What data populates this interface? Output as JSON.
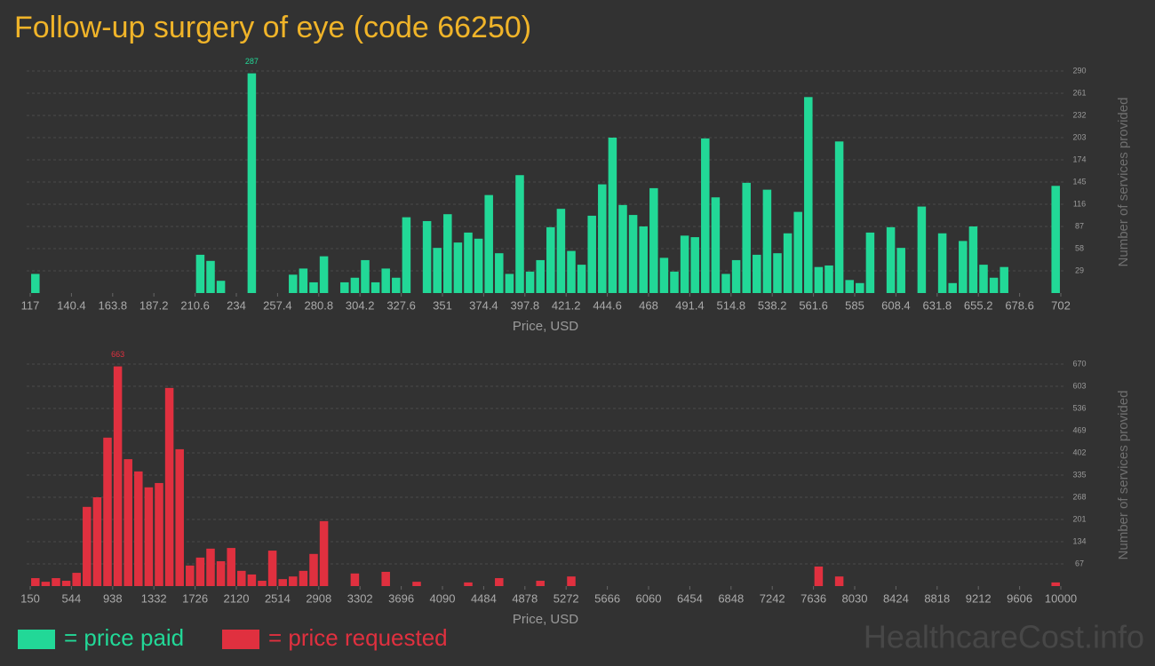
{
  "title": "Follow-up surgery of eye (code 66250)",
  "watermark": "HealthcareCost.info",
  "legend": "bottom-left",
  "chart_data": [
    {
      "type": "histogram",
      "name": "= price paid",
      "color": "#22d897",
      "xlabel": "Price, USD",
      "ylabel": "Number of services provided",
      "grid": true,
      "bins": [
        117,
        122.85,
        128.7,
        134.55,
        140.4,
        146.25,
        152.1,
        157.95,
        163.8,
        169.65,
        175.5,
        181.35,
        187.2,
        193.05,
        198.9,
        204.75,
        210.6,
        216.45,
        222.3,
        228.15,
        234,
        239.85,
        245.7,
        251.55,
        257.4,
        263.25,
        269.1,
        274.95,
        280.8,
        286.65,
        292.5,
        298.35,
        304.2,
        310.05,
        315.9,
        321.75,
        327.6,
        333.45,
        339.3,
        345.15,
        351,
        356.85,
        362.7,
        368.55,
        374.4,
        380.25,
        386.1,
        391.95,
        397.8,
        403.65,
        409.5,
        415.35,
        421.2,
        427.05,
        432.9,
        438.75,
        444.6,
        450.45,
        456.3,
        462.15,
        468,
        473.85,
        479.7,
        485.55,
        491.4,
        497.25,
        503.1,
        508.95,
        514.8,
        520.65,
        526.5,
        532.35,
        538.2,
        544.05,
        549.9,
        555.75,
        561.6,
        567.45,
        573.3,
        579.15,
        585,
        590.85,
        596.7,
        602.55,
        608.4,
        614.25,
        620.1,
        625.95,
        631.8,
        637.65,
        643.5,
        649.35,
        655.2,
        661.05,
        666.9,
        672.75,
        678.6,
        684.45,
        690.3,
        696.15,
        702
      ],
      "counts": [
        25,
        0,
        0,
        0,
        0,
        0,
        0,
        0,
        0,
        0,
        0,
        0,
        0,
        0,
        0,
        0,
        50,
        42,
        16,
        0,
        0,
        287,
        0,
        0,
        0,
        24,
        32,
        14,
        48,
        0,
        14,
        20,
        43,
        14,
        32,
        20,
        99,
        0,
        94,
        59,
        103,
        66,
        79,
        71,
        128,
        52,
        25,
        154,
        28,
        43,
        86,
        110,
        55,
        37,
        101,
        142,
        203,
        115,
        102,
        87,
        137,
        46,
        28,
        75,
        73,
        202,
        125,
        25,
        43,
        144,
        50,
        135,
        52,
        78,
        106,
        256,
        34,
        36,
        198,
        17,
        13,
        79,
        0,
        86,
        59,
        0,
        113,
        0,
        78,
        13,
        68,
        87,
        37,
        20,
        34,
        0,
        0,
        0,
        0,
        140
      ],
      "xlim": [
        117,
        702
      ],
      "xticks": [
        117,
        140.4,
        163.8,
        187.2,
        210.6,
        234,
        257.4,
        280.8,
        304.2,
        327.6,
        351,
        374.4,
        397.8,
        421.2,
        444.6,
        468,
        491.4,
        514.8,
        538.2,
        561.6,
        585,
        608.4,
        631.8,
        655.2,
        678.6,
        702
      ],
      "ylim": [
        0,
        290
      ],
      "yticks": [
        29,
        58,
        87,
        116,
        145,
        174,
        203,
        232,
        261,
        290
      ]
    },
    {
      "type": "histogram",
      "name": "= price requested",
      "color": "#e0303f",
      "xlabel": "Price, USD",
      "ylabel": "Number of services provided",
      "grid": true,
      "bins": [
        150,
        248.5,
        347,
        445.5,
        544,
        642.5,
        741,
        839.5,
        938,
        1036.5,
        1135,
        1233.5,
        1332,
        1430.5,
        1529,
        1627.5,
        1726,
        1824.5,
        1923,
        2021.5,
        2120,
        2218.5,
        2317,
        2415.5,
        2514,
        2612.5,
        2711,
        2809.5,
        2908,
        3006.5,
        3105,
        3203.5,
        3302,
        3400.5,
        3499,
        3597.5,
        3696,
        3794.5,
        3893,
        3991.5,
        4090,
        4188.5,
        4287,
        4385.5,
        4484,
        4582.5,
        4681,
        4779.5,
        4878,
        4976.5,
        5075,
        5173.5,
        5272,
        5370.5,
        5469,
        5567.5,
        5666,
        5764.5,
        5863,
        5961.5,
        6060,
        6158.5,
        6257,
        6355.5,
        6454,
        6552.5,
        6651,
        6749.5,
        6848,
        6946.5,
        7045,
        7143.5,
        7242,
        7340.5,
        7439,
        7537.5,
        7636,
        7734.5,
        7833,
        7931.5,
        8030,
        8128.5,
        8227,
        8325.5,
        8424,
        8522.5,
        8621,
        8719.5,
        8818,
        8916.5,
        9015,
        9113.5,
        9212,
        9310.5,
        9409,
        9507.5,
        9606,
        9704.5,
        9803,
        9901.5,
        10000
      ],
      "counts": [
        24,
        13,
        24,
        16,
        40,
        239,
        268,
        448,
        663,
        383,
        346,
        298,
        311,
        598,
        413,
        62,
        86,
        113,
        75,
        115,
        46,
        35,
        16,
        107,
        21,
        29,
        46,
        97,
        196,
        0,
        0,
        38,
        0,
        0,
        43,
        0,
        0,
        13,
        0,
        0,
        0,
        0,
        11,
        0,
        0,
        24,
        0,
        0,
        0,
        16,
        0,
        0,
        29,
        0,
        0,
        0,
        0,
        0,
        0,
        0,
        0,
        0,
        0,
        0,
        0,
        0,
        0,
        0,
        0,
        0,
        0,
        0,
        0,
        0,
        0,
        0,
        59,
        0,
        29,
        0,
        0,
        0,
        0,
        0,
        0,
        0,
        0,
        0,
        0,
        0,
        0,
        0,
        0,
        0,
        0,
        0,
        0,
        0,
        0,
        11
      ],
      "xlim": [
        150,
        10000
      ],
      "xticks": [
        150,
        544,
        938,
        1332,
        1726,
        2120,
        2514,
        2908,
        3302,
        3696,
        4090,
        4484,
        4878,
        5272,
        5666,
        6060,
        6454,
        6848,
        7242,
        7636,
        8030,
        8424,
        8818,
        9212,
        9606,
        10000
      ],
      "ylim": [
        0,
        670
      ],
      "yticks": [
        67,
        134,
        201,
        268,
        335,
        402,
        469,
        536,
        603,
        670
      ]
    }
  ]
}
